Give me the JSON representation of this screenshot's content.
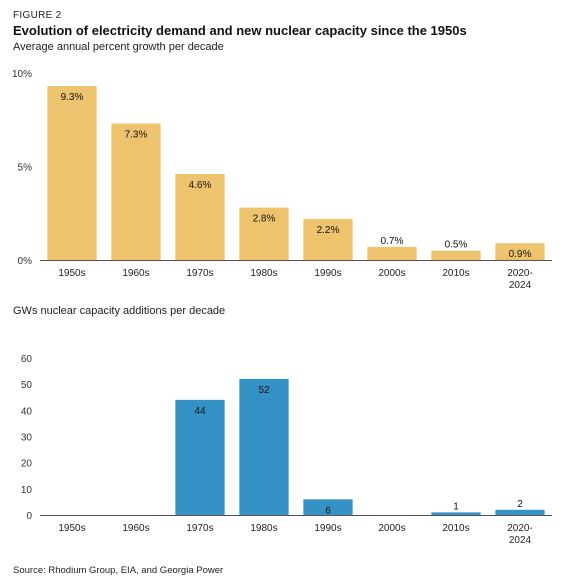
{
  "figure_label": "FIGURE 2",
  "title": "Evolution of electricity demand and new nuclear capacity since the 1950s",
  "source": "Source: Rhodium Group, EIA, and Georgia Power",
  "colors": {
    "demand_bar": "#EDC36E",
    "nuclear_bar": "#3592C6",
    "axis": "#555555"
  },
  "chart_data": [
    {
      "type": "bar",
      "title": "",
      "subtitle": "Average annual percent growth per decade",
      "categories": [
        "1950s",
        "1960s",
        "1970s",
        "1980s",
        "1990s",
        "2000s",
        "2010s",
        "2020-2024"
      ],
      "category_lines": [
        [
          "1950s"
        ],
        [
          "1960s"
        ],
        [
          "1970s"
        ],
        [
          "1980s"
        ],
        [
          "1990s"
        ],
        [
          "2000s"
        ],
        [
          "2010s"
        ],
        [
          "2020-",
          "2024"
        ]
      ],
      "values": [
        9.3,
        7.3,
        4.6,
        2.8,
        2.2,
        0.7,
        0.5,
        0.9
      ],
      "data_labels": [
        "9.3%",
        "7.3%",
        "4.6%",
        "2.8%",
        "2.2%",
        "0.7%",
        "0.5%",
        "0.9%"
      ],
      "ylim": [
        0,
        10
      ],
      "yticks": [
        0,
        5,
        10
      ],
      "ytick_labels": [
        "0%",
        "5%",
        "10%"
      ],
      "xlabel": "",
      "ylabel": ""
    },
    {
      "type": "bar",
      "title": "",
      "subtitle": "GWs nuclear capacity additions per decade",
      "categories": [
        "1950s",
        "1960s",
        "1970s",
        "1980s",
        "1990s",
        "2000s",
        "2010s",
        "2020-2024"
      ],
      "category_lines": [
        [
          "1950s"
        ],
        [
          "1960s"
        ],
        [
          "1970s"
        ],
        [
          "1980s"
        ],
        [
          "1990s"
        ],
        [
          "2000s"
        ],
        [
          "2010s"
        ],
        [
          "2020-",
          "2024"
        ]
      ],
      "values": [
        0,
        0,
        44,
        52,
        6,
        0,
        1,
        2
      ],
      "data_labels": [
        "",
        "",
        "44",
        "52",
        "6",
        "",
        "1",
        "2"
      ],
      "ylim": [
        0,
        60
      ],
      "yticks": [
        0,
        10,
        20,
        30,
        40,
        50,
        60
      ],
      "ytick_labels": [
        "0",
        "10",
        "20",
        "30",
        "40",
        "50",
        "60"
      ],
      "xlabel": "",
      "ylabel": ""
    }
  ]
}
